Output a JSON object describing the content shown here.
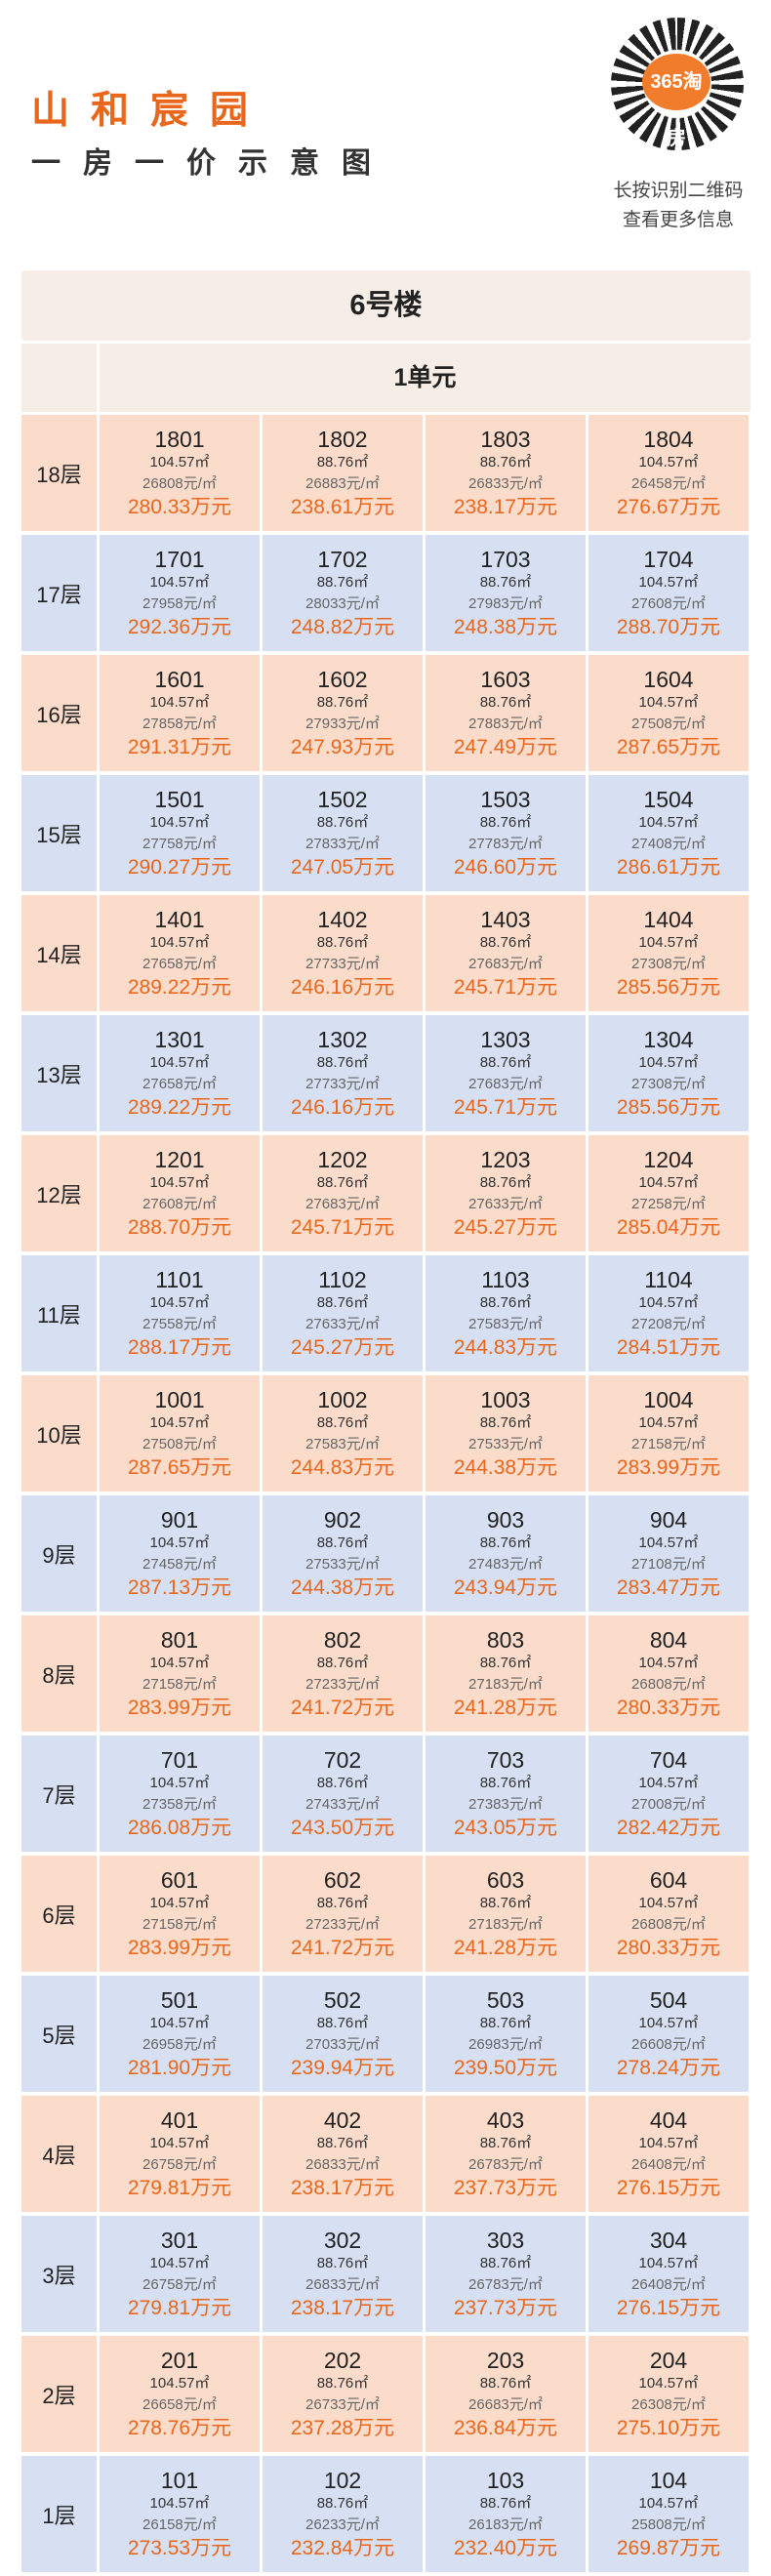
{
  "header": {
    "title": "山和宸园",
    "subtitle": "一房一价示意图",
    "qr_badge": "365淘房",
    "qr_caption_1": "长按识别二维码",
    "qr_caption_2": "查看更多信息"
  },
  "building": {
    "name": "6号楼",
    "unit": "1单元"
  },
  "floors": [
    {
      "label": "18层",
      "theme": "orange",
      "rooms": [
        {
          "no": "1801",
          "area": "104.57㎡",
          "unit_price": "26808元/㎡",
          "total": "280.33万元"
        },
        {
          "no": "1802",
          "area": "88.76㎡",
          "unit_price": "26883元/㎡",
          "total": "238.61万元"
        },
        {
          "no": "1803",
          "area": "88.76㎡",
          "unit_price": "26833元/㎡",
          "total": "238.17万元"
        },
        {
          "no": "1804",
          "area": "104.57㎡",
          "unit_price": "26458元/㎡",
          "total": "276.67万元"
        }
      ]
    },
    {
      "label": "17层",
      "theme": "blue",
      "rooms": [
        {
          "no": "1701",
          "area": "104.57㎡",
          "unit_price": "27958元/㎡",
          "total": "292.36万元"
        },
        {
          "no": "1702",
          "area": "88.76㎡",
          "unit_price": "28033元/㎡",
          "total": "248.82万元"
        },
        {
          "no": "1703",
          "area": "88.76㎡",
          "unit_price": "27983元/㎡",
          "total": "248.38万元"
        },
        {
          "no": "1704",
          "area": "104.57㎡",
          "unit_price": "27608元/㎡",
          "total": "288.70万元"
        }
      ]
    },
    {
      "label": "16层",
      "theme": "orange",
      "rooms": [
        {
          "no": "1601",
          "area": "104.57㎡",
          "unit_price": "27858元/㎡",
          "total": "291.31万元"
        },
        {
          "no": "1602",
          "area": "88.76㎡",
          "unit_price": "27933元/㎡",
          "total": "247.93万元"
        },
        {
          "no": "1603",
          "area": "88.76㎡",
          "unit_price": "27883元/㎡",
          "total": "247.49万元"
        },
        {
          "no": "1604",
          "area": "104.57㎡",
          "unit_price": "27508元/㎡",
          "total": "287.65万元"
        }
      ]
    },
    {
      "label": "15层",
      "theme": "blue",
      "rooms": [
        {
          "no": "1501",
          "area": "104.57㎡",
          "unit_price": "27758元/㎡",
          "total": "290.27万元"
        },
        {
          "no": "1502",
          "area": "88.76㎡",
          "unit_price": "27833元/㎡",
          "total": "247.05万元"
        },
        {
          "no": "1503",
          "area": "88.76㎡",
          "unit_price": "27783元/㎡",
          "total": "246.60万元"
        },
        {
          "no": "1504",
          "area": "104.57㎡",
          "unit_price": "27408元/㎡",
          "total": "286.61万元"
        }
      ]
    },
    {
      "label": "14层",
      "theme": "orange",
      "rooms": [
        {
          "no": "1401",
          "area": "104.57㎡",
          "unit_price": "27658元/㎡",
          "total": "289.22万元"
        },
        {
          "no": "1402",
          "area": "88.76㎡",
          "unit_price": "27733元/㎡",
          "total": "246.16万元"
        },
        {
          "no": "1403",
          "area": "88.76㎡",
          "unit_price": "27683元/㎡",
          "total": "245.71万元"
        },
        {
          "no": "1404",
          "area": "104.57㎡",
          "unit_price": "27308元/㎡",
          "total": "285.56万元"
        }
      ]
    },
    {
      "label": "13层",
      "theme": "blue",
      "rooms": [
        {
          "no": "1301",
          "area": "104.57㎡",
          "unit_price": "27658元/㎡",
          "total": "289.22万元"
        },
        {
          "no": "1302",
          "area": "88.76㎡",
          "unit_price": "27733元/㎡",
          "total": "246.16万元"
        },
        {
          "no": "1303",
          "area": "88.76㎡",
          "unit_price": "27683元/㎡",
          "total": "245.71万元"
        },
        {
          "no": "1304",
          "area": "104.57㎡",
          "unit_price": "27308元/㎡",
          "total": "285.56万元"
        }
      ]
    },
    {
      "label": "12层",
      "theme": "orange",
      "rooms": [
        {
          "no": "1201",
          "area": "104.57㎡",
          "unit_price": "27608元/㎡",
          "total": "288.70万元"
        },
        {
          "no": "1202",
          "area": "88.76㎡",
          "unit_price": "27683元/㎡",
          "total": "245.71万元"
        },
        {
          "no": "1203",
          "area": "88.76㎡",
          "unit_price": "27633元/㎡",
          "total": "245.27万元"
        },
        {
          "no": "1204",
          "area": "104.57㎡",
          "unit_price": "27258元/㎡",
          "total": "285.04万元"
        }
      ]
    },
    {
      "label": "11层",
      "theme": "blue",
      "rooms": [
        {
          "no": "1101",
          "area": "104.57㎡",
          "unit_price": "27558元/㎡",
          "total": "288.17万元"
        },
        {
          "no": "1102",
          "area": "88.76㎡",
          "unit_price": "27633元/㎡",
          "total": "245.27万元"
        },
        {
          "no": "1103",
          "area": "88.76㎡",
          "unit_price": "27583元/㎡",
          "total": "244.83万元"
        },
        {
          "no": "1104",
          "area": "104.57㎡",
          "unit_price": "27208元/㎡",
          "total": "284.51万元"
        }
      ]
    },
    {
      "label": "10层",
      "theme": "orange",
      "rooms": [
        {
          "no": "1001",
          "area": "104.57㎡",
          "unit_price": "27508元/㎡",
          "total": "287.65万元"
        },
        {
          "no": "1002",
          "area": "88.76㎡",
          "unit_price": "27583元/㎡",
          "total": "244.83万元"
        },
        {
          "no": "1003",
          "area": "88.76㎡",
          "unit_price": "27533元/㎡",
          "total": "244.38万元"
        },
        {
          "no": "1004",
          "area": "104.57㎡",
          "unit_price": "27158元/㎡",
          "total": "283.99万元"
        }
      ]
    },
    {
      "label": "9层",
      "theme": "blue",
      "rooms": [
        {
          "no": "901",
          "area": "104.57㎡",
          "unit_price": "27458元/㎡",
          "total": "287.13万元"
        },
        {
          "no": "902",
          "area": "88.76㎡",
          "unit_price": "27533元/㎡",
          "total": "244.38万元"
        },
        {
          "no": "903",
          "area": "88.76㎡",
          "unit_price": "27483元/㎡",
          "total": "243.94万元"
        },
        {
          "no": "904",
          "area": "104.57㎡",
          "unit_price": "27108元/㎡",
          "total": "283.47万元"
        }
      ]
    },
    {
      "label": "8层",
      "theme": "orange",
      "rooms": [
        {
          "no": "801",
          "area": "104.57㎡",
          "unit_price": "27158元/㎡",
          "total": "283.99万元"
        },
        {
          "no": "802",
          "area": "88.76㎡",
          "unit_price": "27233元/㎡",
          "total": "241.72万元"
        },
        {
          "no": "803",
          "area": "88.76㎡",
          "unit_price": "27183元/㎡",
          "total": "241.28万元"
        },
        {
          "no": "804",
          "area": "104.57㎡",
          "unit_price": "26808元/㎡",
          "total": "280.33万元"
        }
      ]
    },
    {
      "label": "7层",
      "theme": "blue",
      "rooms": [
        {
          "no": "701",
          "area": "104.57㎡",
          "unit_price": "27358元/㎡",
          "total": "286.08万元"
        },
        {
          "no": "702",
          "area": "88.76㎡",
          "unit_price": "27433元/㎡",
          "total": "243.50万元"
        },
        {
          "no": "703",
          "area": "88.76㎡",
          "unit_price": "27383元/㎡",
          "total": "243.05万元"
        },
        {
          "no": "704",
          "area": "104.57㎡",
          "unit_price": "27008元/㎡",
          "total": "282.42万元"
        }
      ]
    },
    {
      "label": "6层",
      "theme": "orange",
      "rooms": [
        {
          "no": "601",
          "area": "104.57㎡",
          "unit_price": "27158元/㎡",
          "total": "283.99万元"
        },
        {
          "no": "602",
          "area": "88.76㎡",
          "unit_price": "27233元/㎡",
          "total": "241.72万元"
        },
        {
          "no": "603",
          "area": "88.76㎡",
          "unit_price": "27183元/㎡",
          "total": "241.28万元"
        },
        {
          "no": "604",
          "area": "104.57㎡",
          "unit_price": "26808元/㎡",
          "total": "280.33万元"
        }
      ]
    },
    {
      "label": "5层",
      "theme": "blue",
      "rooms": [
        {
          "no": "501",
          "area": "104.57㎡",
          "unit_price": "26958元/㎡",
          "total": "281.90万元"
        },
        {
          "no": "502",
          "area": "88.76㎡",
          "unit_price": "27033元/㎡",
          "total": "239.94万元"
        },
        {
          "no": "503",
          "area": "88.76㎡",
          "unit_price": "26983元/㎡",
          "total": "239.50万元"
        },
        {
          "no": "504",
          "area": "104.57㎡",
          "unit_price": "26608元/㎡",
          "total": "278.24万元"
        }
      ]
    },
    {
      "label": "4层",
      "theme": "orange",
      "rooms": [
        {
          "no": "401",
          "area": "104.57㎡",
          "unit_price": "26758元/㎡",
          "total": "279.81万元"
        },
        {
          "no": "402",
          "area": "88.76㎡",
          "unit_price": "26833元/㎡",
          "total": "238.17万元"
        },
        {
          "no": "403",
          "area": "88.76㎡",
          "unit_price": "26783元/㎡",
          "total": "237.73万元"
        },
        {
          "no": "404",
          "area": "104.57㎡",
          "unit_price": "26408元/㎡",
          "total": "276.15万元"
        }
      ]
    },
    {
      "label": "3层",
      "theme": "blue",
      "rooms": [
        {
          "no": "301",
          "area": "104.57㎡",
          "unit_price": "26758元/㎡",
          "total": "279.81万元"
        },
        {
          "no": "302",
          "area": "88.76㎡",
          "unit_price": "26833元/㎡",
          "total": "238.17万元"
        },
        {
          "no": "303",
          "area": "88.76㎡",
          "unit_price": "26783元/㎡",
          "total": "237.73万元"
        },
        {
          "no": "304",
          "area": "104.57㎡",
          "unit_price": "26408元/㎡",
          "total": "276.15万元"
        }
      ]
    },
    {
      "label": "2层",
      "theme": "orange",
      "rooms": [
        {
          "no": "201",
          "area": "104.57㎡",
          "unit_price": "26658元/㎡",
          "total": "278.76万元"
        },
        {
          "no": "202",
          "area": "88.76㎡",
          "unit_price": "26733元/㎡",
          "total": "237.28万元"
        },
        {
          "no": "203",
          "area": "88.76㎡",
          "unit_price": "26683元/㎡",
          "total": "236.84万元"
        },
        {
          "no": "204",
          "area": "104.57㎡",
          "unit_price": "26308元/㎡",
          "total": "275.10万元"
        }
      ]
    },
    {
      "label": "1层",
      "theme": "blue",
      "rooms": [
        {
          "no": "101",
          "area": "104.57㎡",
          "unit_price": "26158元/㎡",
          "total": "273.53万元"
        },
        {
          "no": "102",
          "area": "88.76㎡",
          "unit_price": "26233元/㎡",
          "total": "232.84万元"
        },
        {
          "no": "103",
          "area": "88.76㎡",
          "unit_price": "26183元/㎡",
          "total": "232.40万元"
        },
        {
          "no": "104",
          "area": "104.57㎡",
          "unit_price": "25808元/㎡",
          "total": "269.87万元"
        }
      ]
    }
  ]
}
